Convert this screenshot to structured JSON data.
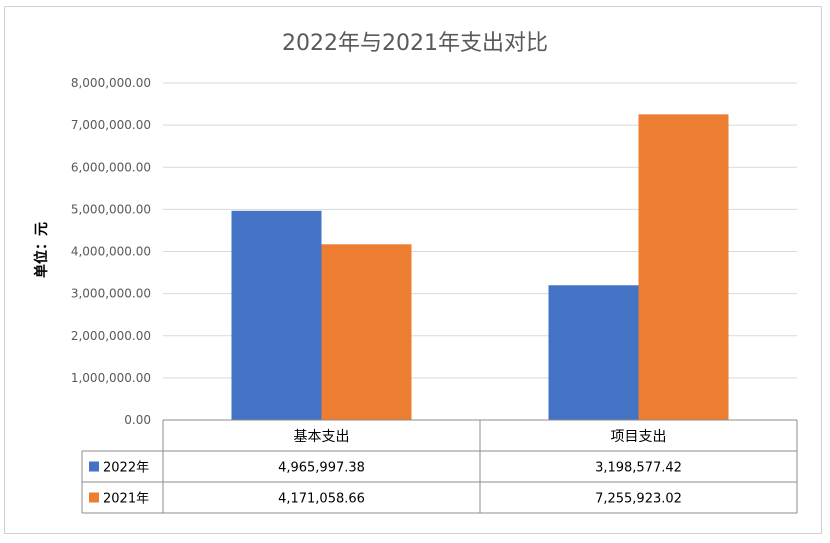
{
  "chart_data": {
    "type": "bar",
    "title": "2022年与2021年支出对比",
    "ylabel": "单位：元",
    "xlabel": "",
    "categories": [
      "基本支出",
      "项目支出"
    ],
    "series": [
      {
        "name": "2022年",
        "values": [
          4965997.38,
          3198577.42
        ],
        "labels": [
          "4,965,997.38",
          "3,198,577.42"
        ],
        "color": "#4472C4"
      },
      {
        "name": "2021年",
        "values": [
          4171058.66,
          7255923.02
        ],
        "labels": [
          "4,171,058.66",
          "7,255,923.02"
        ],
        "color": "#ED7D31"
      }
    ],
    "ylim": [
      0,
      8000000
    ],
    "yticks": [
      0,
      1000000,
      2000000,
      3000000,
      4000000,
      5000000,
      6000000,
      7000000,
      8000000
    ],
    "ytick_labels": [
      "0.00",
      "1,000,000.00",
      "2,000,000.00",
      "3,000,000.00",
      "4,000,000.00",
      "5,000,000.00",
      "6,000,000.00",
      "7,000,000.00",
      "8,000,000.00"
    ],
    "grid": true,
    "legend": "data-table"
  }
}
